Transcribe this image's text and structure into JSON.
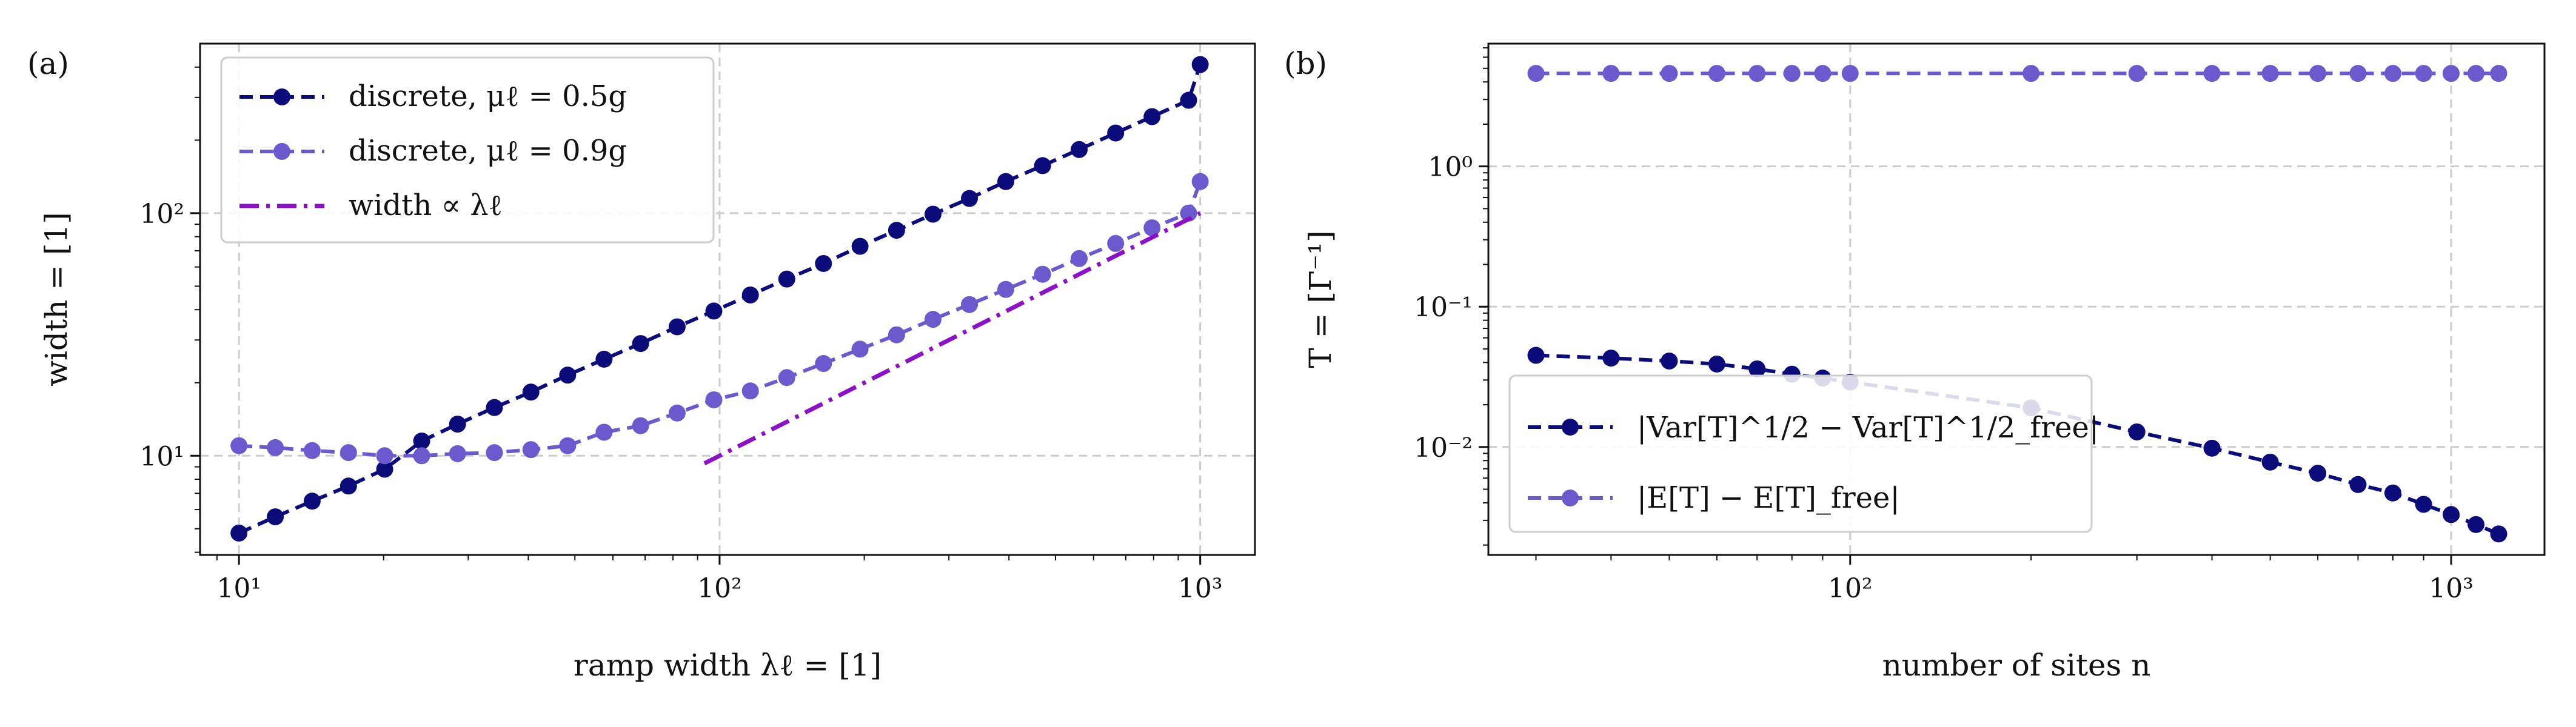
{
  "chart_data": [
    {
      "panel_label": "(a)",
      "type": "line",
      "xscale": "log",
      "yscale": "log",
      "xlim": [
        8.3,
        1300
      ],
      "ylim": [
        3.9,
        500
      ],
      "xlabel": "ramp width λℓ = [1]",
      "ylabel": "width = [1]",
      "grid": true,
      "legend_position": "upper-left",
      "x_ticks": [
        {
          "value": 10,
          "label": "10¹"
        },
        {
          "value": 100,
          "label": "10²"
        },
        {
          "value": 1000,
          "label": "10³"
        }
      ],
      "y_ticks": [
        {
          "value": 10,
          "label": "10¹"
        },
        {
          "value": 100,
          "label": "10²"
        }
      ],
      "series": [
        {
          "name": "discrete, μℓ = 0.5g",
          "color": "#0b0b7a",
          "style": "dashed-marker",
          "x": [
            10,
            11.9,
            14.2,
            16.9,
            20.1,
            24,
            28.5,
            34,
            40.5,
            48.3,
            57.5,
            68.5,
            81.6,
            97.3,
            115.9,
            138,
            164.5,
            196,
            233.5,
            278,
            331,
            394,
            470,
            560,
            667,
            794,
            946,
            1000
          ],
          "y": [
            4.8,
            5.6,
            6.5,
            7.5,
            8.8,
            11.5,
            13.5,
            15.8,
            18.3,
            21.5,
            25,
            29,
            34,
            39.5,
            46,
            53.5,
            62,
            73,
            85,
            99,
            115,
            135,
            157,
            183,
            214,
            250,
            292,
            410
          ]
        },
        {
          "name": "discrete, μℓ = 0.9g",
          "color": "#6a5acd",
          "style": "dashed-marker",
          "x": [
            10,
            11.9,
            14.2,
            16.9,
            20.1,
            24,
            28.5,
            34,
            40.5,
            48.3,
            57.5,
            68.5,
            81.6,
            97.3,
            115.9,
            138,
            164.5,
            196,
            233.5,
            278,
            331,
            394,
            470,
            560,
            667,
            794,
            946,
            1000
          ],
          "y": [
            11,
            10.8,
            10.5,
            10.3,
            10,
            10,
            10.2,
            10.3,
            10.6,
            11,
            12.5,
            13.3,
            15,
            17,
            18.5,
            21,
            24,
            27.5,
            31.5,
            36.5,
            42,
            48.5,
            56,
            65,
            75,
            87,
            100,
            135
          ]
        },
        {
          "name": "width ∝ λℓ",
          "color": "#8b10c8",
          "style": "dash-dot",
          "x": [
            93,
            1000
          ],
          "y": [
            9.3,
            100
          ]
        }
      ]
    },
    {
      "panel_label": "(b)",
      "type": "line",
      "xscale": "log",
      "yscale": "log",
      "xlim": [
        25,
        1430
      ],
      "ylim": [
        0.0017,
        7.5
      ],
      "xlabel": "number of sites n",
      "ylabel": "T = [Γ⁻¹]",
      "grid": true,
      "legend_position": "lower-left",
      "x_ticks": [
        {
          "value": 100,
          "label": "10²"
        },
        {
          "value": 1000,
          "label": "10³"
        }
      ],
      "y_ticks": [
        {
          "value": 0.01,
          "label": "10⁻²"
        },
        {
          "value": 0.1,
          "label": "10⁻¹"
        },
        {
          "value": 1,
          "label": "10⁰"
        }
      ],
      "series": [
        {
          "name": "|Var[T]^1/2 − Var[T]^1/2_free|",
          "color": "#0b0b7a",
          "style": "dashed-marker",
          "x": [
            30,
            40,
            50,
            60,
            70,
            80,
            90,
            100,
            200,
            300,
            400,
            500,
            600,
            700,
            800,
            900,
            1000,
            1100,
            1200
          ],
          "y": [
            0.045,
            0.043,
            0.041,
            0.039,
            0.036,
            0.033,
            0.031,
            0.029,
            0.019,
            0.0128,
            0.0098,
            0.0078,
            0.0065,
            0.0054,
            0.0047,
            0.0039,
            0.0033,
            0.0028,
            0.0024
          ]
        },
        {
          "name": "|E[T] − E[T]_free|",
          "color": "#6a5acd",
          "style": "dashed-marker",
          "x": [
            30,
            40,
            50,
            60,
            70,
            80,
            90,
            100,
            200,
            300,
            400,
            500,
            600,
            700,
            800,
            900,
            1000,
            1100,
            1200
          ],
          "y": [
            4.6,
            4.6,
            4.6,
            4.6,
            4.6,
            4.6,
            4.6,
            4.6,
            4.6,
            4.6,
            4.6,
            4.6,
            4.6,
            4.6,
            4.6,
            4.6,
            4.6,
            4.6,
            4.6
          ]
        }
      ]
    }
  ]
}
